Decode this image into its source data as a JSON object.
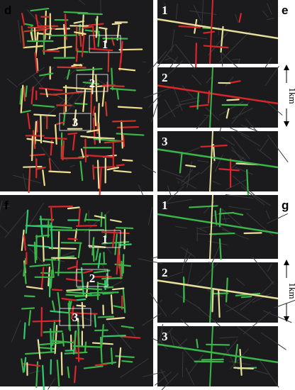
{
  "panels": [
    {
      "label": "d",
      "markers": [
        "1",
        "2",
        "3"
      ]
    },
    {
      "label": "e",
      "insets": [
        "1",
        "2",
        "3"
      ],
      "scale": "1km"
    },
    {
      "label": "f",
      "markers": [
        "1",
        "2",
        "3"
      ]
    },
    {
      "label": "g",
      "insets": [
        "1",
        "2",
        "3"
      ],
      "scale": "1km"
    }
  ]
}
